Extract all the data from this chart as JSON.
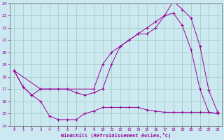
{
  "xlabel": "Windchill (Refroidissement éolien,°C)",
  "background_color": "#cce8f0",
  "grid_color": "#99ccbb",
  "line_color": "#990099",
  "xlim": [
    -0.5,
    23.5
  ],
  "ylim": [
    14,
    24
  ],
  "xticks": [
    0,
    1,
    2,
    3,
    4,
    5,
    6,
    7,
    8,
    9,
    10,
    11,
    12,
    13,
    14,
    15,
    16,
    17,
    18,
    19,
    20,
    21,
    22,
    23
  ],
  "yticks": [
    14,
    15,
    16,
    17,
    18,
    19,
    20,
    21,
    22,
    23,
    24
  ],
  "line1_x": [
    0,
    1,
    2,
    3,
    4,
    5,
    6,
    7,
    8,
    9,
    10,
    11,
    12,
    13,
    14,
    15,
    16,
    17,
    18,
    19,
    20,
    21,
    22,
    23
  ],
  "line1_y": [
    18.5,
    17.2,
    16.5,
    17.0,
    17.0,
    17.0,
    17.0,
    16.7,
    16.5,
    16.7,
    17.0,
    19.0,
    20.5,
    21.0,
    21.5,
    21.5,
    22.0,
    23.0,
    23.2,
    22.2,
    20.2,
    17.0,
    15.1,
    15.0
  ],
  "line2_x": [
    0,
    3,
    9,
    10,
    11,
    12,
    13,
    14,
    15,
    16,
    17,
    18,
    19,
    20,
    21,
    22,
    23
  ],
  "line2_y": [
    18.5,
    17.0,
    17.0,
    19.0,
    20.0,
    20.5,
    21.0,
    21.5,
    22.0,
    22.5,
    23.0,
    24.2,
    23.5,
    22.8,
    20.5,
    16.9,
    15.1
  ],
  "line3_x": [
    0,
    1,
    2,
    3,
    4,
    5,
    6,
    7,
    8,
    9,
    10,
    11,
    12,
    13,
    14,
    15,
    16,
    17,
    18,
    19,
    20,
    21,
    22,
    23
  ],
  "line3_y": [
    18.5,
    17.2,
    16.5,
    16.0,
    14.8,
    14.5,
    14.5,
    14.5,
    15.0,
    15.2,
    15.5,
    15.5,
    15.5,
    15.5,
    15.5,
    15.3,
    15.2,
    15.1,
    15.1,
    15.1,
    15.1,
    15.1,
    15.1,
    15.0
  ]
}
